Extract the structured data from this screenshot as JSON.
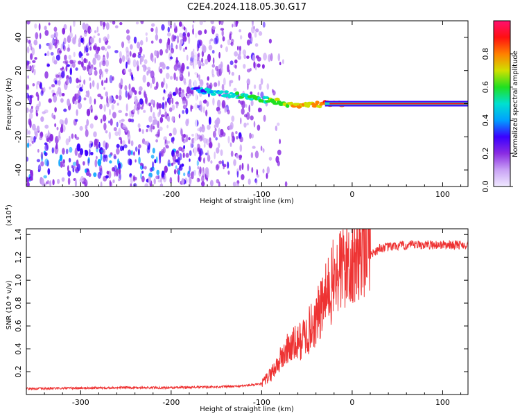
{
  "title": "C2E4.2024.118.05.30.G17",
  "chart_data": [
    {
      "type": "heatmap",
      "xlabel": "Height of straight line (km)",
      "ylabel": "Frequency (Hz)",
      "xlim": [
        -360,
        128
      ],
      "ylim": [
        -50,
        50
      ],
      "xticks": [
        -300,
        -200,
        -100,
        0,
        100
      ],
      "yticks": [
        -40,
        -20,
        0,
        20,
        40
      ],
      "colorbar": {
        "label": "Normalized spectral amplitude",
        "range": [
          0,
          1
        ],
        "ticks": [
          0.0,
          0.2,
          0.4,
          0.6,
          0.8
        ],
        "colors": [
          "#f0eaff",
          "#c9a2f5",
          "#8a2be2",
          "#3a00ff",
          "#00a0ff",
          "#00e0d0",
          "#20e020",
          "#d0e000",
          "#ff8000",
          "#ff1010",
          "#ff1070"
        ]
      },
      "features": {
        "noise_x_range": [
          -360,
          -100
        ],
        "tone_line": {
          "y": 0,
          "x_range": [
            -30,
            128
          ],
          "amplitude": 0.9
        },
        "signal_track": [
          [
            -175,
            8
          ],
          [
            -155,
            7
          ],
          [
            -130,
            5
          ],
          [
            -110,
            4
          ],
          [
            -90,
            2
          ],
          [
            -70,
            0
          ],
          [
            -50,
            -1
          ],
          [
            -30,
            0
          ],
          [
            -10,
            0
          ]
        ],
        "streak_center_y": -35
      }
    },
    {
      "type": "line",
      "xlabel": "Height of straight line (km)",
      "ylabel": "SNR (10 * v/v)",
      "yscale_label": "(x10",
      "yscale_exp": "4",
      "xlim": [
        -360,
        128
      ],
      "ylim": [
        0,
        1.45
      ],
      "xticks": [
        -300,
        -200,
        -100,
        0,
        100
      ],
      "yticks": [
        0.2,
        0.4,
        0.6,
        0.8,
        1.0,
        1.2,
        1.4
      ],
      "ytick_labels": [
        "0.2",
        "0.4",
        "0.6",
        "0.8",
        "1.0",
        "1.2",
        "1.4"
      ],
      "color": "#ee3333",
      "envelope": [
        {
          "x": -360,
          "y": 0.04
        },
        {
          "x": -260,
          "y": 0.05
        },
        {
          "x": -200,
          "y": 0.05
        },
        {
          "x": -130,
          "y": 0.06
        },
        {
          "x": -100,
          "y": 0.08
        },
        {
          "x": -90,
          "y": 0.15
        },
        {
          "x": -80,
          "y": 0.25
        },
        {
          "x": -70,
          "y": 0.35
        },
        {
          "x": -60,
          "y": 0.38
        },
        {
          "x": -50,
          "y": 0.45
        },
        {
          "x": -40,
          "y": 0.55
        },
        {
          "x": -30,
          "y": 0.7
        },
        {
          "x": -20,
          "y": 0.85
        },
        {
          "x": -10,
          "y": 0.95
        },
        {
          "x": 0,
          "y": 1.02
        },
        {
          "x": 10,
          "y": 1.1
        },
        {
          "x": 20,
          "y": 1.22
        },
        {
          "x": 30,
          "y": 1.28
        },
        {
          "x": 50,
          "y": 1.3
        },
        {
          "x": 80,
          "y": 1.31
        },
        {
          "x": 128,
          "y": 1.31
        }
      ]
    }
  ]
}
